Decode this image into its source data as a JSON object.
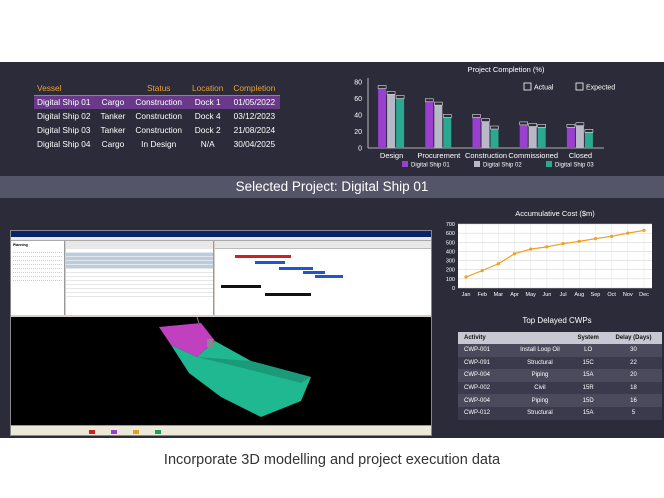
{
  "vessel_table": {
    "headers": [
      "Vessel",
      "",
      "Status",
      "Location",
      "Completion"
    ],
    "rows": [
      [
        "Digital Ship 01",
        "Cargo",
        "Construction",
        "Dock 1",
        "01/05/2022"
      ],
      [
        "Digital Ship 02",
        "Tanker",
        "Construction",
        "Dock 4",
        "03/12/2023"
      ],
      [
        "Digital Ship 03",
        "Tanker",
        "Construction",
        "Dock 2",
        "21/08/2024"
      ],
      [
        "Digital Ship 04",
        "Cargo",
        "In Design",
        "N/A",
        "30/04/2025"
      ]
    ],
    "selected_row": 0
  },
  "banner": {
    "label": "Selected Project: Digital Ship 01"
  },
  "app_preview": {
    "tree_header": "Planning"
  },
  "delayed_cwps": {
    "title": "Top Delayed CWPs",
    "headers": [
      "Activity",
      "",
      "System",
      "Delay (Days)"
    ],
    "rows": [
      [
        "CWP-001",
        "Install Loop Oil",
        "LO",
        "30"
      ],
      [
        "CWP-091",
        "Structural",
        "15C",
        "22"
      ],
      [
        "CWP-004",
        "Piping",
        "15A",
        "20"
      ],
      [
        "CWP-002",
        "Civil",
        "15R",
        "18"
      ],
      [
        "CWP-004",
        "Piping",
        "15D",
        "16"
      ],
      [
        "CWP-012",
        "Structural",
        "15A",
        "5"
      ]
    ]
  },
  "caption": "Incorporate 3D modelling and project execution data",
  "chart_data": [
    {
      "type": "bar",
      "title": "Project Completion (%)",
      "categories": [
        "Design",
        "Procurement",
        "Construction",
        "Commissioned",
        "Closed"
      ],
      "ylim": [
        0,
        80
      ],
      "yticks": [
        0,
        20,
        40,
        60,
        80
      ],
      "series": [
        {
          "name": "Digital Ship 01",
          "color": "#9b3fd0",
          "values": [
            72,
            56,
            37,
            28,
            25
          ]
        },
        {
          "name": "Digital Ship 02",
          "color": "#b8b8c8",
          "values": [
            65,
            52,
            32,
            26,
            27
          ]
        },
        {
          "name": "Digital Ship 03",
          "color": "#2aa890",
          "values": [
            60,
            37,
            23,
            25,
            19
          ]
        }
      ],
      "toggles": [
        {
          "label": "Actual",
          "checked": false
        },
        {
          "label": "Expected",
          "checked": false
        }
      ],
      "grid": false,
      "legend": "bottom"
    },
    {
      "type": "line",
      "title": "Accumulative Cost ($m)",
      "categories": [
        "Jan",
        "Feb",
        "Mar",
        "Apr",
        "May",
        "Jun",
        "Jul",
        "Aug",
        "Sep",
        "Oct",
        "Nov",
        "Dec"
      ],
      "values": [
        120,
        190,
        265,
        375,
        425,
        450,
        485,
        510,
        540,
        565,
        600,
        630
      ],
      "ylim": [
        0,
        700
      ],
      "yticks": [
        0,
        100,
        200,
        300,
        400,
        500,
        600,
        700
      ],
      "color": "#f0a020",
      "grid": true
    }
  ]
}
